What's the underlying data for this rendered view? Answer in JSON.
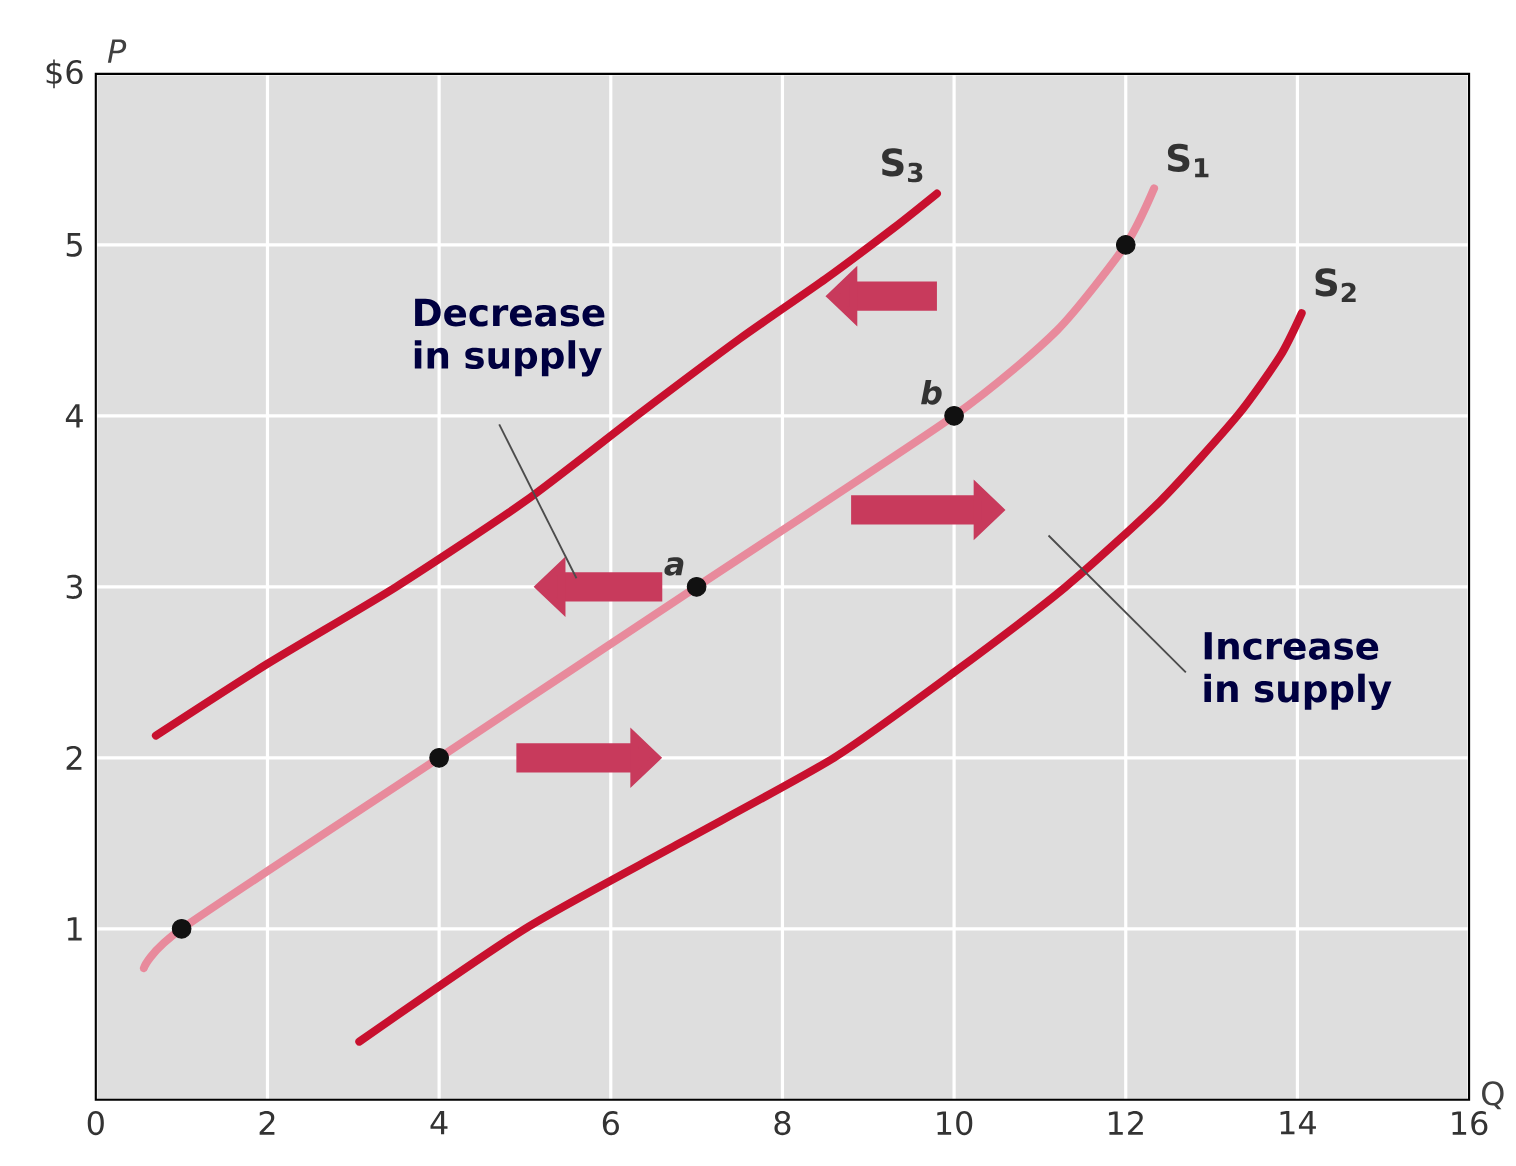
{
  "chart_data": {
    "type": "line",
    "xlabel": "Q",
    "ylabel": "P",
    "xlim": [
      0,
      16
    ],
    "ylim": [
      0,
      6
    ],
    "xticks": [
      0,
      2,
      4,
      6,
      8,
      10,
      12,
      14,
      16
    ],
    "yticks": [
      1,
      2,
      3,
      4,
      5,
      {
        "value": 6,
        "label": "$6"
      }
    ],
    "grid": true,
    "series": [
      {
        "name": "S$_{3}$",
        "color": "#c8102e",
        "x": [
          0.7,
          2,
          3.5,
          5,
          6.3,
          7.5,
          8.5,
          9.3,
          9.8
        ],
        "values": [
          2.13,
          2.55,
          3.0,
          3.5,
          4.0,
          4.45,
          4.8,
          5.1,
          5.3
        ]
      },
      {
        "name": "S$_{1}$",
        "color": "#e88a9c",
        "x": [
          0.56,
          1,
          4,
          7,
          10,
          11.2,
          12,
          12.33
        ],
        "values": [
          0.77,
          1,
          2,
          3,
          4,
          4.5,
          5,
          5.33
        ]
      },
      {
        "name": "S$_{2}$",
        "color": "#c8102e",
        "x": [
          3.07,
          5.0,
          6.8,
          8.6,
          10.0,
          11.3,
          12.4,
          13.3,
          13.8,
          14.05
        ],
        "values": [
          0.34,
          1.0,
          1.5,
          2.0,
          2.5,
          3.0,
          3.5,
          4.0,
          4.35,
          4.6
        ]
      },
      {
        "type": "scatter",
        "color": "#111111",
        "marker": "circle",
        "x": [
          1,
          4,
          7,
          10,
          12
        ],
        "values": [
          1,
          2,
          3,
          4,
          5
        ]
      }
    ],
    "annotations": [
      "Decrease in supply",
      "Increase in supply",
      {
        "text": "a",
        "x": 7,
        "y": 3
      },
      {
        "text": "b",
        "x": 10,
        "y": 4
      }
    ]
  }
}
